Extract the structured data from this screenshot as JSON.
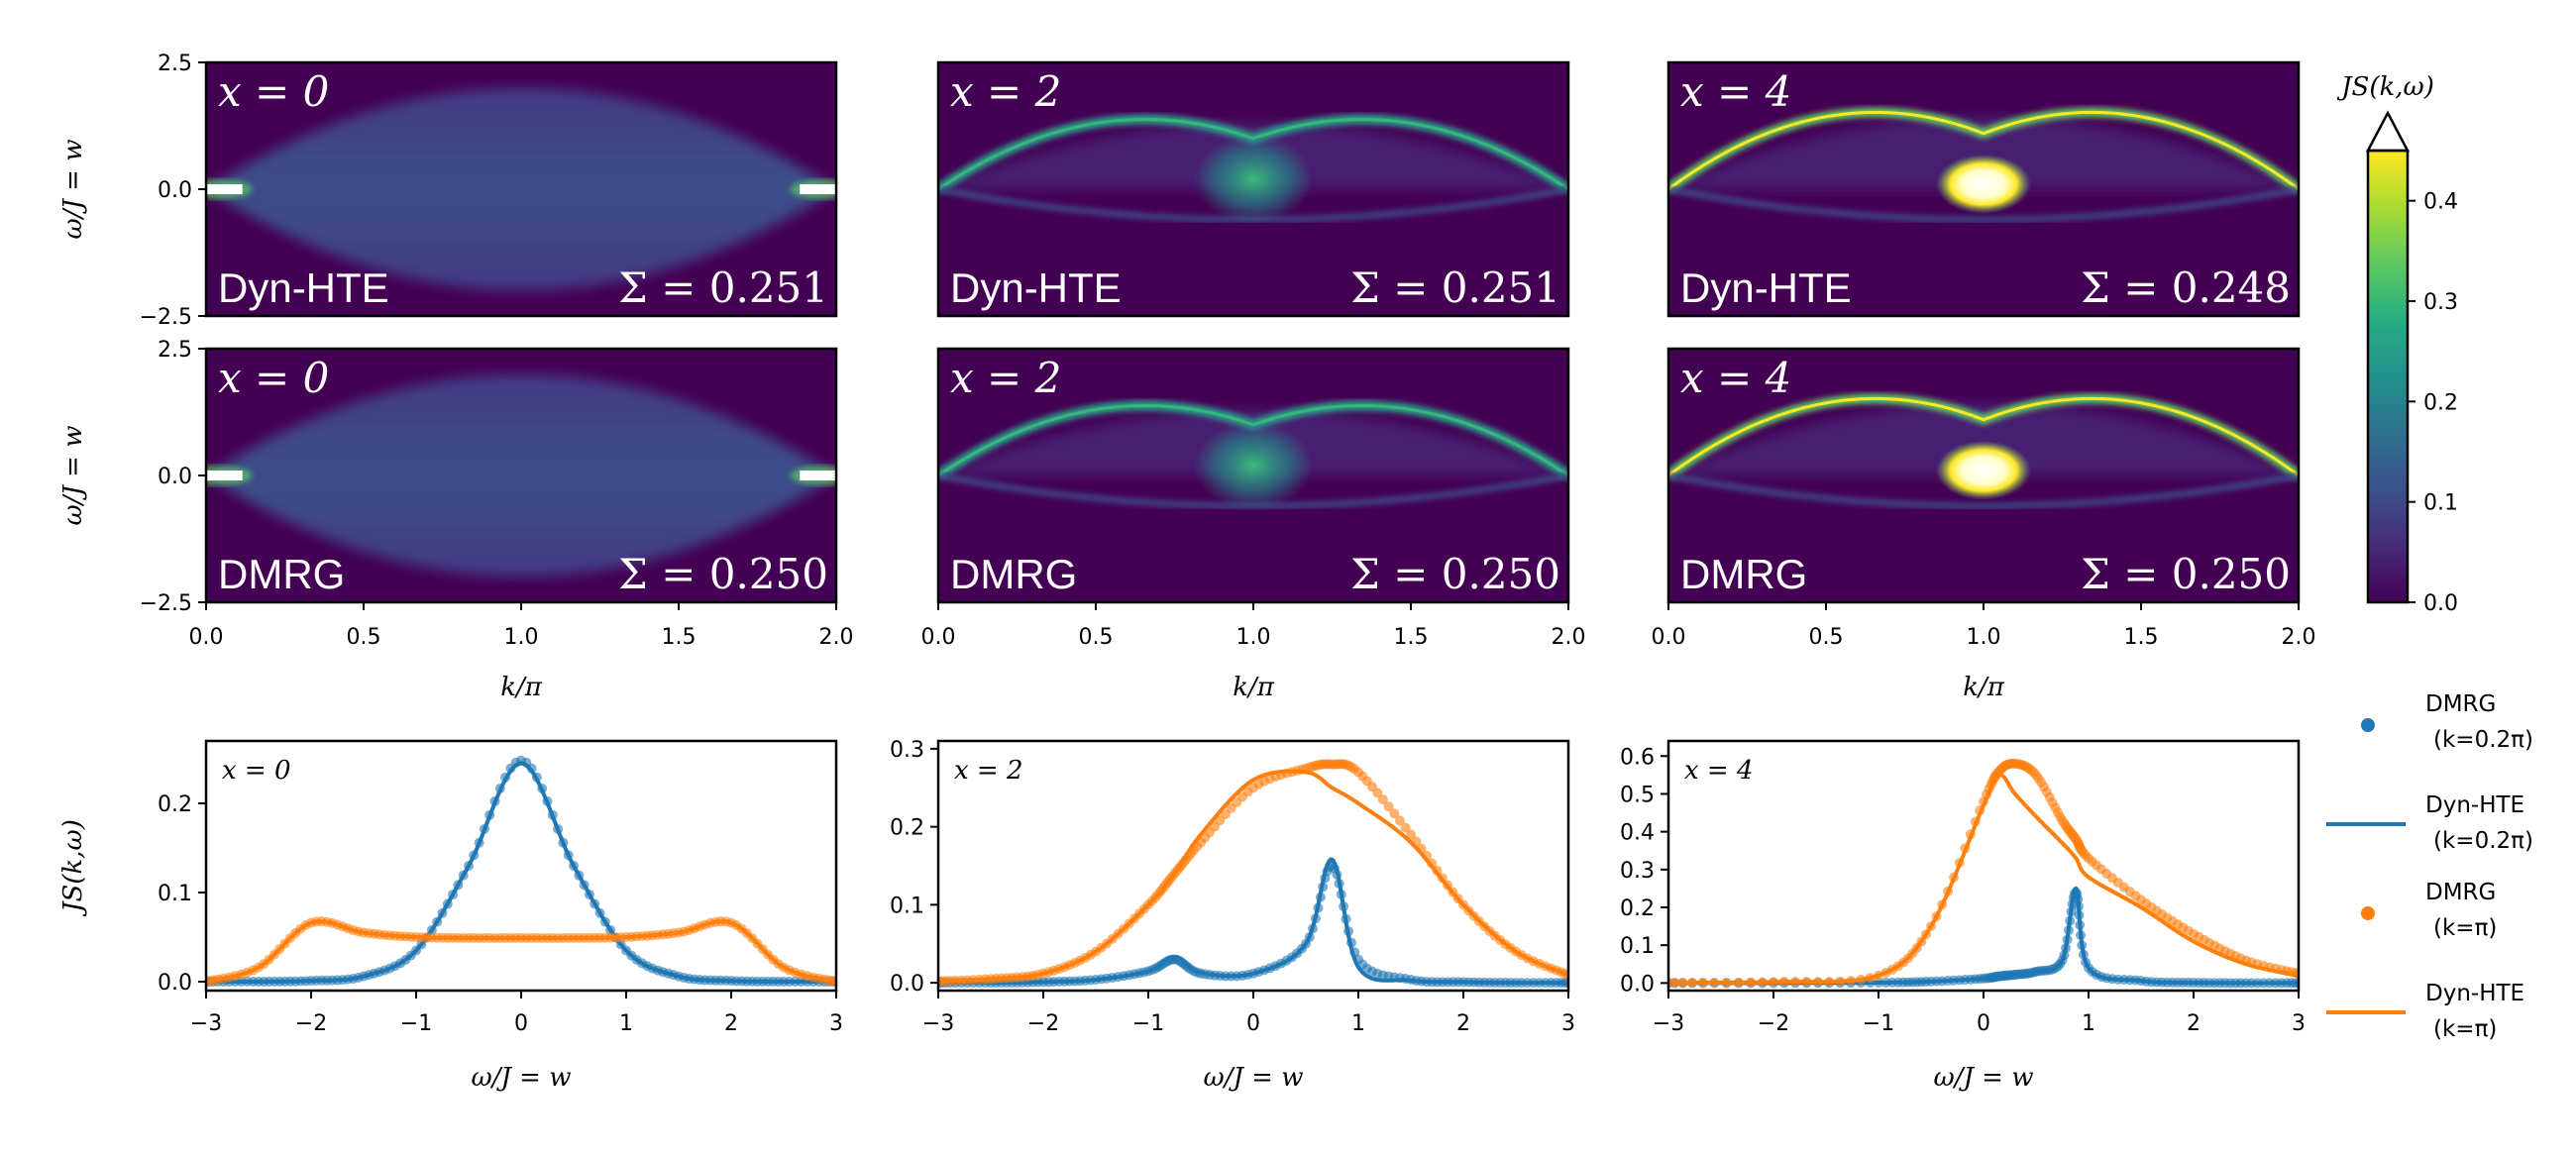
{
  "figure": {
    "colorbar": {
      "label": "JS(k,ω)",
      "ticks": [
        "0.0",
        "0.1",
        "0.2",
        "0.3",
        "0.4"
      ],
      "tick_values": [
        0,
        0.1,
        0.2,
        0.3,
        0.4
      ],
      "range": [
        0,
        0.45
      ],
      "extend": "max",
      "colormap": "viridis"
    },
    "heatmap_axes": {
      "xlabel": "k/π",
      "ylabel": "ω/J = w",
      "xticks": [
        "0.0",
        "0.5",
        "1.0",
        "1.5",
        "2.0"
      ],
      "yticks": [
        "2.5",
        "0.0",
        "−2.5"
      ]
    },
    "line_axes": {
      "xlabel": "ω/J = w",
      "ylabel": "JS(k,ω)",
      "xticks": [
        "−3",
        "−2",
        "−1",
        "0",
        "1",
        "2",
        "3"
      ]
    },
    "legend": {
      "entries": [
        {
          "label1": "DMRG",
          "label2": "(k=0.2π)",
          "style": "dots",
          "color": "#1f77b4"
        },
        {
          "label1": "Dyn-HTE",
          "label2": "(k=0.2π)",
          "style": "line",
          "color": "#1f77b4"
        },
        {
          "label1": "DMRG",
          "label2": "(k=π)",
          "style": "dots",
          "color": "#ff7f0e"
        },
        {
          "label1": "Dyn-HTE",
          "label2": "(k=π)",
          "style": "line",
          "color": "#ff7f0e"
        }
      ]
    }
  },
  "chart_data": [
    {
      "type": "heatmap",
      "panel": "top-left",
      "x_label": "x = 0",
      "method": "Dyn-HTE",
      "sigma": "Σ = 0.251",
      "xlim": [
        0,
        2
      ],
      "ylim": [
        -2.5,
        2.5
      ]
    },
    {
      "type": "heatmap",
      "panel": "top-middle",
      "x_label": "x = 2",
      "method": "Dyn-HTE",
      "sigma": "Σ = 0.251",
      "xlim": [
        0,
        2
      ],
      "ylim": [
        -2.5,
        2.5
      ]
    },
    {
      "type": "heatmap",
      "panel": "top-right",
      "x_label": "x = 4",
      "method": "Dyn-HTE",
      "sigma": "Σ = 0.248",
      "xlim": [
        0,
        2
      ],
      "ylim": [
        -2.5,
        2.5
      ]
    },
    {
      "type": "heatmap",
      "panel": "middle-left",
      "x_label": "x = 0",
      "method": "DMRG",
      "sigma": "Σ = 0.250",
      "xlim": [
        0,
        2
      ],
      "ylim": [
        -2.5,
        2.5
      ]
    },
    {
      "type": "heatmap",
      "panel": "middle-middle",
      "x_label": "x = 2",
      "method": "DMRG",
      "sigma": "Σ = 0.250",
      "xlim": [
        0,
        2
      ],
      "ylim": [
        -2.5,
        2.5
      ]
    },
    {
      "type": "heatmap",
      "panel": "middle-right",
      "x_label": "x = 4",
      "method": "DMRG",
      "sigma": "Σ = 0.250",
      "xlim": [
        0,
        2
      ],
      "ylim": [
        -2.5,
        2.5
      ]
    },
    {
      "type": "line",
      "panel": "bottom-left",
      "x_label": "x = 0",
      "xlim": [
        -3,
        3
      ],
      "ylim": [
        -0.01,
        0.27
      ],
      "yticks": [
        0.0,
        0.1,
        0.2
      ],
      "ytick_labels": [
        "0.0",
        "0.1",
        "0.2"
      ],
      "x": [
        -3,
        -2.5,
        -2,
        -1.5,
        -1,
        -0.5,
        0,
        0.5,
        1,
        1.5,
        2,
        2.5,
        3
      ],
      "series": [
        {
          "name": "DMRG (k=0.2π)",
          "values": [
            0,
            0,
            0.001,
            0.006,
            0.035,
            0.13,
            0.248,
            0.13,
            0.035,
            0.006,
            0.001,
            0,
            0
          ]
        },
        {
          "name": "Dyn-HTE (k=0.2π)",
          "values": [
            0,
            0,
            0.001,
            0.006,
            0.035,
            0.13,
            0.245,
            0.13,
            0.035,
            0.006,
            0.001,
            0,
            0
          ]
        },
        {
          "name": "DMRG (k=π)",
          "values": [
            0,
            0.016,
            0.066,
            0.055,
            0.05,
            0.049,
            0.049,
            0.049,
            0.05,
            0.055,
            0.066,
            0.016,
            0
          ]
        },
        {
          "name": "Dyn-HTE (k=π)",
          "values": [
            0,
            0.016,
            0.066,
            0.055,
            0.05,
            0.049,
            0.049,
            0.049,
            0.05,
            0.055,
            0.066,
            0.016,
            0
          ]
        }
      ]
    },
    {
      "type": "line",
      "panel": "bottom-middle",
      "x_label": "x = 2",
      "xlim": [
        -3,
        3
      ],
      "ylim": [
        -0.01,
        0.31
      ],
      "yticks": [
        0.0,
        0.1,
        0.2,
        0.3
      ],
      "ytick_labels": [
        "0.0",
        "0.1",
        "0.2",
        "0.3"
      ],
      "x": [
        -3,
        -2.5,
        -2,
        -1.5,
        -1,
        -0.75,
        -0.5,
        0,
        0.5,
        0.75,
        1,
        1.5,
        2,
        2.5,
        3
      ],
      "series": [
        {
          "name": "DMRG (k=0.2π)",
          "values": [
            0,
            0,
            0.001,
            0.004,
            0.015,
            0.03,
            0.012,
            0.012,
            0.05,
            0.15,
            0.03,
            0.004,
            0.001,
            0,
            0
          ]
        },
        {
          "name": "Dyn-HTE (k=0.2π)",
          "values": [
            0,
            0,
            0.001,
            0.004,
            0.015,
            0.033,
            0.013,
            0.012,
            0.05,
            0.158,
            0.02,
            0.003,
            0.001,
            0,
            0
          ]
        },
        {
          "name": "DMRG (k=π)",
          "values": [
            0.002,
            0.005,
            0.012,
            0.04,
            0.1,
            0.14,
            0.18,
            0.25,
            0.275,
            0.28,
            0.27,
            0.19,
            0.1,
            0.04,
            0.01
          ]
        },
        {
          "name": "Dyn-HTE (k=π)",
          "values": [
            0.002,
            0.005,
            0.012,
            0.04,
            0.1,
            0.14,
            0.19,
            0.26,
            0.27,
            0.25,
            0.23,
            0.18,
            0.1,
            0.04,
            0.01
          ]
        }
      ]
    },
    {
      "type": "line",
      "panel": "bottom-right",
      "x_label": "x = 4",
      "xlim": [
        -3,
        3
      ],
      "ylim": [
        -0.02,
        0.64
      ],
      "yticks": [
        0.0,
        0.1,
        0.2,
        0.3,
        0.4,
        0.5,
        0.6
      ],
      "ytick_labels": [
        "0.0",
        "0.1",
        "0.2",
        "0.3",
        "0.4",
        "0.5",
        "0.6"
      ],
      "x": [
        -3,
        -2,
        -1,
        -0.5,
        0,
        0.15,
        0.3,
        0.5,
        0.75,
        0.88,
        1,
        1.5,
        2,
        2.5,
        3
      ],
      "series": [
        {
          "name": "DMRG (k=0.2π)",
          "values": [
            0,
            0,
            0.001,
            0.004,
            0.012,
            0.018,
            0.022,
            0.03,
            0.06,
            0.24,
            0.04,
            0.006,
            0.001,
            0,
            0
          ]
        },
        {
          "name": "Dyn-HTE (k=0.2π)",
          "values": [
            0,
            0,
            0.001,
            0.004,
            0.012,
            0.018,
            0.022,
            0.03,
            0.06,
            0.25,
            0.04,
            0.006,
            0.001,
            0,
            0
          ]
        },
        {
          "name": "DMRG (k=π)",
          "values": [
            0.001,
            0.003,
            0.02,
            0.15,
            0.48,
            0.56,
            0.58,
            0.55,
            0.43,
            0.38,
            0.33,
            0.22,
            0.13,
            0.06,
            0.025
          ]
        },
        {
          "name": "Dyn-HTE (k=π)",
          "values": [
            0.001,
            0.003,
            0.02,
            0.15,
            0.47,
            0.55,
            0.5,
            0.44,
            0.37,
            0.33,
            0.28,
            0.2,
            0.11,
            0.05,
            0.02
          ]
        }
      ]
    }
  ]
}
